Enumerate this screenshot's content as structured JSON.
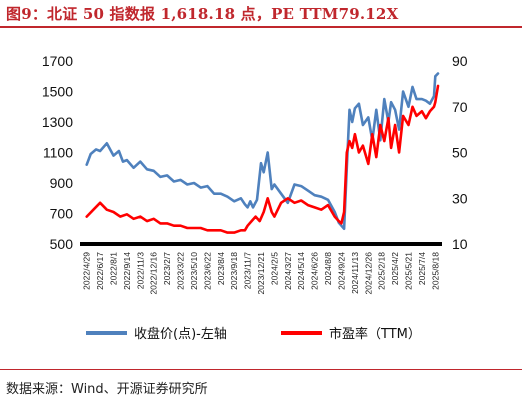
{
  "title": "图9：北证 50 指数报 1,618.18 点，PE TTM79.12X",
  "source": "数据来源：Wind、开源证券研究所",
  "colors": {
    "title": "#c0272d",
    "index": "#4f81bd",
    "pe": "#ff0000"
  },
  "chart_data": {
    "type": "line",
    "title": "",
    "xlabel": "",
    "ylabel": "",
    "x_tick_labels": [
      "2022/4/29",
      "2022/6/17",
      "2022/8/1",
      "2022/9/14",
      "2022/11/3",
      "2022/12/16",
      "2023/2/7",
      "2023/3/22",
      "2023/5/10",
      "2023/6/22",
      "2023/8/4",
      "2023/9/18",
      "2023/11/7",
      "2023/12/21",
      "2024/2/5",
      "2024/3/27",
      "2024/5/14",
      "2024/6/26",
      "2024/8/8",
      "2024/9/24",
      "2024/11/13",
      "2024/12/26",
      "2025/2/18",
      "2025/4/2",
      "2025/5/21",
      "2025/7/4",
      "2025/8/18"
    ],
    "y_left": {
      "min": 500,
      "max": 1700,
      "ticks": [
        500,
        700,
        900,
        1100,
        1300,
        1500,
        1700
      ]
    },
    "y_right": {
      "min": 10,
      "max": 90,
      "ticks": [
        10,
        30,
        50,
        70,
        90
      ]
    },
    "legend": {
      "position": "bottom"
    },
    "grid": false,
    "series": [
      {
        "name": "收盘价(点)-左轴",
        "axis": "left",
        "color": "#4f81bd",
        "x_index": [
          0,
          0.3,
          0.7,
          1,
          1.5,
          2,
          2.4,
          2.7,
          3,
          3.5,
          4,
          4.5,
          5,
          5.5,
          6,
          6.5,
          7,
          7.5,
          8,
          8.5,
          9,
          9.5,
          10,
          10.5,
          11,
          11.5,
          11.8,
          12,
          12.2,
          12.4,
          12.7,
          13,
          13.2,
          13.5,
          13.8,
          14,
          14.5,
          15,
          15.5,
          16,
          16.5,
          17,
          17.5,
          18,
          18.5,
          18.8,
          19,
          19.2,
          19.4,
          19.6,
          19.8,
          20,
          20.3,
          20.6,
          21,
          21.3,
          21.6,
          21.9,
          22.2,
          22.5,
          22.7,
          23,
          23.3,
          23.6,
          24,
          24.3,
          24.6,
          25,
          25.3,
          25.6,
          25.9,
          26,
          26.2
        ],
        "values": [
          1020,
          1090,
          1120,
          1110,
          1160,
          1080,
          1110,
          1040,
          1050,
          1000,
          1040,
          990,
          980,
          940,
          950,
          910,
          920,
          890,
          900,
          870,
          880,
          830,
          830,
          810,
          780,
          800,
          760,
          740,
          780,
          740,
          790,
          1030,
          970,
          1100,
          860,
          890,
          830,
          770,
          890,
          880,
          850,
          820,
          810,
          790,
          710,
          640,
          620,
          600,
          1000,
          1380,
          1300,
          1390,
          1420,
          1280,
          1330,
          1180,
          1380,
          1180,
          1450,
          1300,
          1430,
          1380,
          1250,
          1500,
          1400,
          1530,
          1450,
          1450,
          1440,
          1420,
          1470,
          1600,
          1618.18
        ]
      },
      {
        "name": "市盈率（TTM）",
        "axis": "right",
        "color": "#ff0000",
        "x_index": [
          0,
          0.5,
          1,
          1.5,
          2,
          2.5,
          3,
          3.5,
          4,
          4.5,
          5,
          5.5,
          6,
          6.5,
          7,
          7.5,
          8,
          8.5,
          9,
          9.5,
          10,
          10.5,
          11,
          11.5,
          11.8,
          12,
          12.3,
          12.6,
          12.9,
          13.2,
          13.5,
          13.8,
          14,
          14.5,
          15,
          15.5,
          16,
          16.5,
          17,
          17.5,
          18,
          18.5,
          18.8,
          19,
          19.2,
          19.4,
          19.6,
          19.8,
          20,
          20.3,
          20.6,
          21,
          21.3,
          21.6,
          21.9,
          22.2,
          22.5,
          22.7,
          23,
          23.3,
          23.6,
          24,
          24.3,
          24.6,
          25,
          25.3,
          25.6,
          25.9,
          26,
          26.2
        ],
        "values": [
          22,
          25,
          28,
          25,
          24,
          22,
          23,
          21,
          22,
          20,
          21,
          19,
          19,
          18,
          18,
          17,
          17,
          17,
          16,
          16,
          16,
          15,
          15,
          16,
          16,
          18,
          20,
          22,
          20,
          24,
          30,
          24,
          22,
          28,
          30,
          28,
          29,
          27,
          26,
          25,
          27,
          22,
          20,
          19,
          24,
          50,
          55,
          52,
          58,
          50,
          53,
          45,
          58,
          48,
          62,
          55,
          65,
          52,
          62,
          50,
          66,
          62,
          70,
          66,
          68,
          65,
          68,
          70,
          72,
          79.12
        ]
      }
    ]
  }
}
